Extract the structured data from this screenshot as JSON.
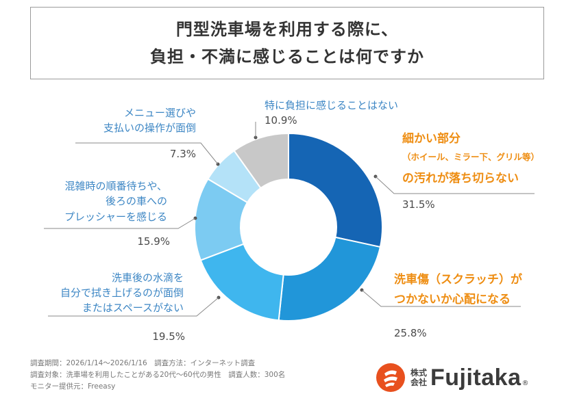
{
  "title": {
    "line1": "門型洗車場を利用する際に、",
    "line2": "負担・不満に感じることは何ですか"
  },
  "chart_data": {
    "type": "pie",
    "donut": true,
    "slices": [
      {
        "label_lines": [
          "細かい部分",
          "（ホイール、ミラー下、グリル等）",
          "の汚れが落ち切らない"
        ],
        "value": 31.5,
        "value_label": "31.5%",
        "color": "#1565b4",
        "highlight": true
      },
      {
        "label_lines": [
          "洗車傷（スクラッチ）が",
          "つかないか心配になる"
        ],
        "value": 25.8,
        "value_label": "25.8%",
        "color": "#2196d9",
        "highlight": true
      },
      {
        "label_lines": [
          "洗車後の水滴を",
          "自分で拭き上げるのが面倒",
          "またはスペースがない"
        ],
        "value": 19.5,
        "value_label": "19.5%",
        "color": "#3fb6ee",
        "highlight": false
      },
      {
        "label_lines": [
          "混雑時の順番待ちや、",
          "後ろの車への",
          "プレッシャーを感じる"
        ],
        "value": 15.9,
        "value_label": "15.9%",
        "color": "#7ccbf2",
        "highlight": false
      },
      {
        "label_lines": [
          "メニュー選びや",
          "支払いの操作が面倒"
        ],
        "value": 7.3,
        "value_label": "7.3%",
        "color": "#b4e2f8",
        "highlight": false
      },
      {
        "label_lines": [
          "特に負担に感じることはない"
        ],
        "value": 10.9,
        "value_label": "10.9%",
        "color": "#c8c8c8",
        "highlight": false
      }
    ],
    "label_colors": {
      "normal": "#3c86c4",
      "highlight": "#ee8d12"
    }
  },
  "footnotes": [
    "調査期間：2026/1/14～2026/1/16　調査方法：インターネット調査",
    "調査対象：洗車場を利用したことがある20代～60代の男性　調査人数：300名",
    "モニター提供元：Freeasy"
  ],
  "logo": {
    "kaisha_top": "株式",
    "kaisha_bottom": "会社",
    "name": "Fujitaka",
    "reg": "®",
    "color": "#e8501e"
  }
}
